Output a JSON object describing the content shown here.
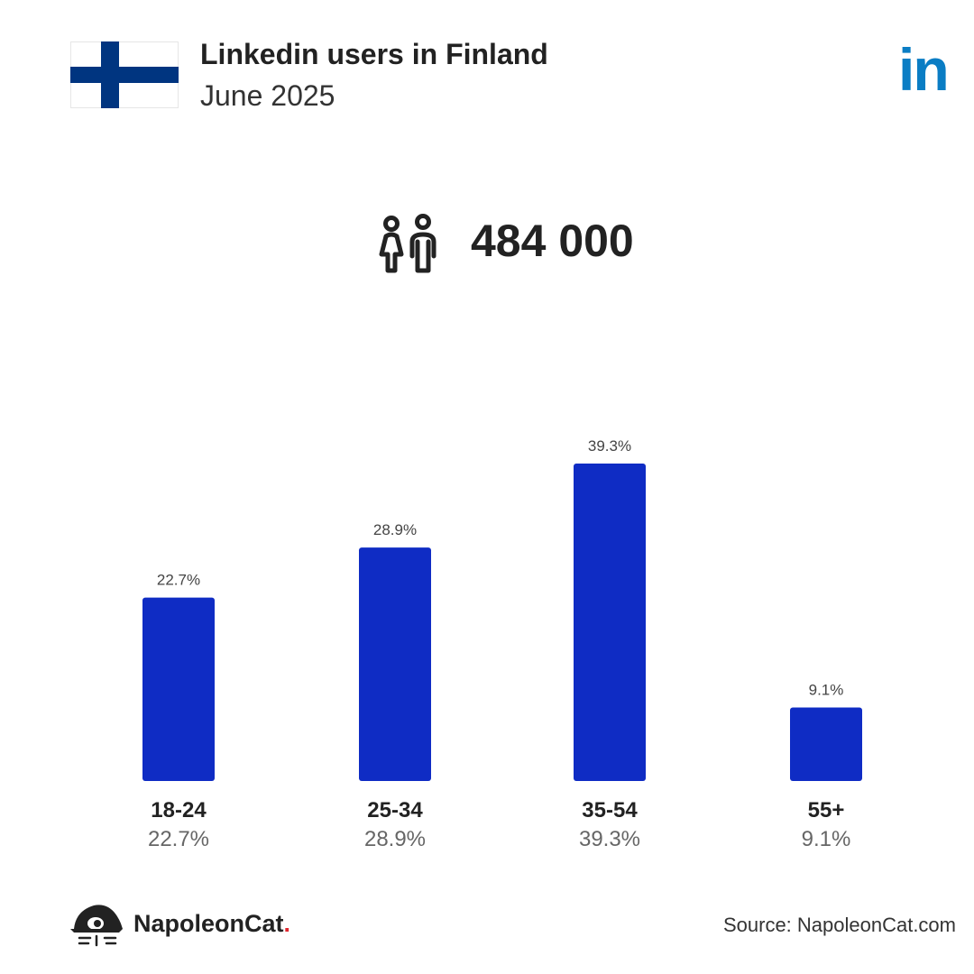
{
  "header": {
    "title": "Linkedin users in Finland",
    "subtitle": "June 2025"
  },
  "flag": {
    "icon": "finland-flag-icon",
    "field_color": "#ffffff",
    "cross_color": "#003580"
  },
  "brand": {
    "icon": "linkedin-icon",
    "text": "in",
    "color": "#0a7dc4"
  },
  "total": {
    "icon": "users-icon",
    "value": "484 000"
  },
  "chart_data": {
    "type": "bar",
    "categories": [
      "18-24",
      "25-34",
      "35-54",
      "55+"
    ],
    "values": [
      22.7,
      28.9,
      39.3,
      9.1
    ],
    "value_labels": [
      "22.7%",
      "28.9%",
      "39.3%",
      "9.1%"
    ],
    "ylim": [
      0,
      39.3
    ],
    "bar_color": "#0f2cc4",
    "grid": false,
    "legend": "none"
  },
  "footer": {
    "logo_icon": "napoleoncat-logo-icon",
    "logo_text": "NapoleonCat",
    "logo_dot": ".",
    "source": "Source: NapoleonCat.com"
  }
}
